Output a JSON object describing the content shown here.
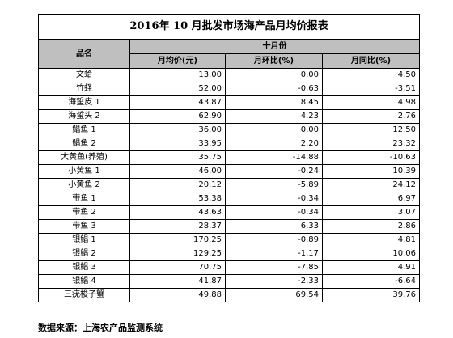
{
  "table": {
    "title": "2016年 10 月批发市场海产品月均价报表",
    "headers": {
      "name": "品名",
      "period": "十月份",
      "avg_price": "月均价(元)",
      "mom": "月环比(%)",
      "yoy": "月同比(%)"
    },
    "rows": [
      {
        "name": "文蛤",
        "price": "13.00",
        "mom": "0.00",
        "yoy": "4.50"
      },
      {
        "name": "竹蛏",
        "price": "52.00",
        "mom": "-0.63",
        "yoy": "-3.51"
      },
      {
        "name": "海蜇皮 1",
        "price": "43.87",
        "mom": "8.45",
        "yoy": "4.98"
      },
      {
        "name": "海蜇头 2",
        "price": "62.90",
        "mom": "4.23",
        "yoy": "2.76"
      },
      {
        "name": "鲳鱼 1",
        "price": "36.00",
        "mom": "0.00",
        "yoy": "12.50"
      },
      {
        "name": "鲳鱼 2",
        "price": "33.95",
        "mom": "2.20",
        "yoy": "23.32"
      },
      {
        "name": "大黄鱼(养殖)",
        "price": "35.75",
        "mom": "-14.88",
        "yoy": "-10.63"
      },
      {
        "name": "小黄鱼 1",
        "price": "46.00",
        "mom": "-0.24",
        "yoy": "10.39"
      },
      {
        "name": "小黄鱼 2",
        "price": "20.12",
        "mom": "-5.89",
        "yoy": "24.12"
      },
      {
        "name": "带鱼 1",
        "price": "53.38",
        "mom": "-0.34",
        "yoy": "6.97"
      },
      {
        "name": "带鱼 2",
        "price": "43.63",
        "mom": "-0.34",
        "yoy": "3.07"
      },
      {
        "name": "带鱼 3",
        "price": "28.37",
        "mom": "6.33",
        "yoy": "2.86"
      },
      {
        "name": "银鲳 1",
        "price": "170.25",
        "mom": "-0.89",
        "yoy": "4.81"
      },
      {
        "name": "银鲳 2",
        "price": "129.25",
        "mom": "-1.17",
        "yoy": "10.06"
      },
      {
        "name": "银鲳 3",
        "price": "70.75",
        "mom": "-7.85",
        "yoy": "4.91"
      },
      {
        "name": "银鲳 4",
        "price": "41.87",
        "mom": "-2.33",
        "yoy": "-6.64"
      },
      {
        "name": "三疣梭子蟹",
        "price": "49.88",
        "mom": "69.54",
        "yoy": "39.76"
      }
    ]
  },
  "footer": {
    "source": "数据来源：上海农产品监测系统"
  }
}
